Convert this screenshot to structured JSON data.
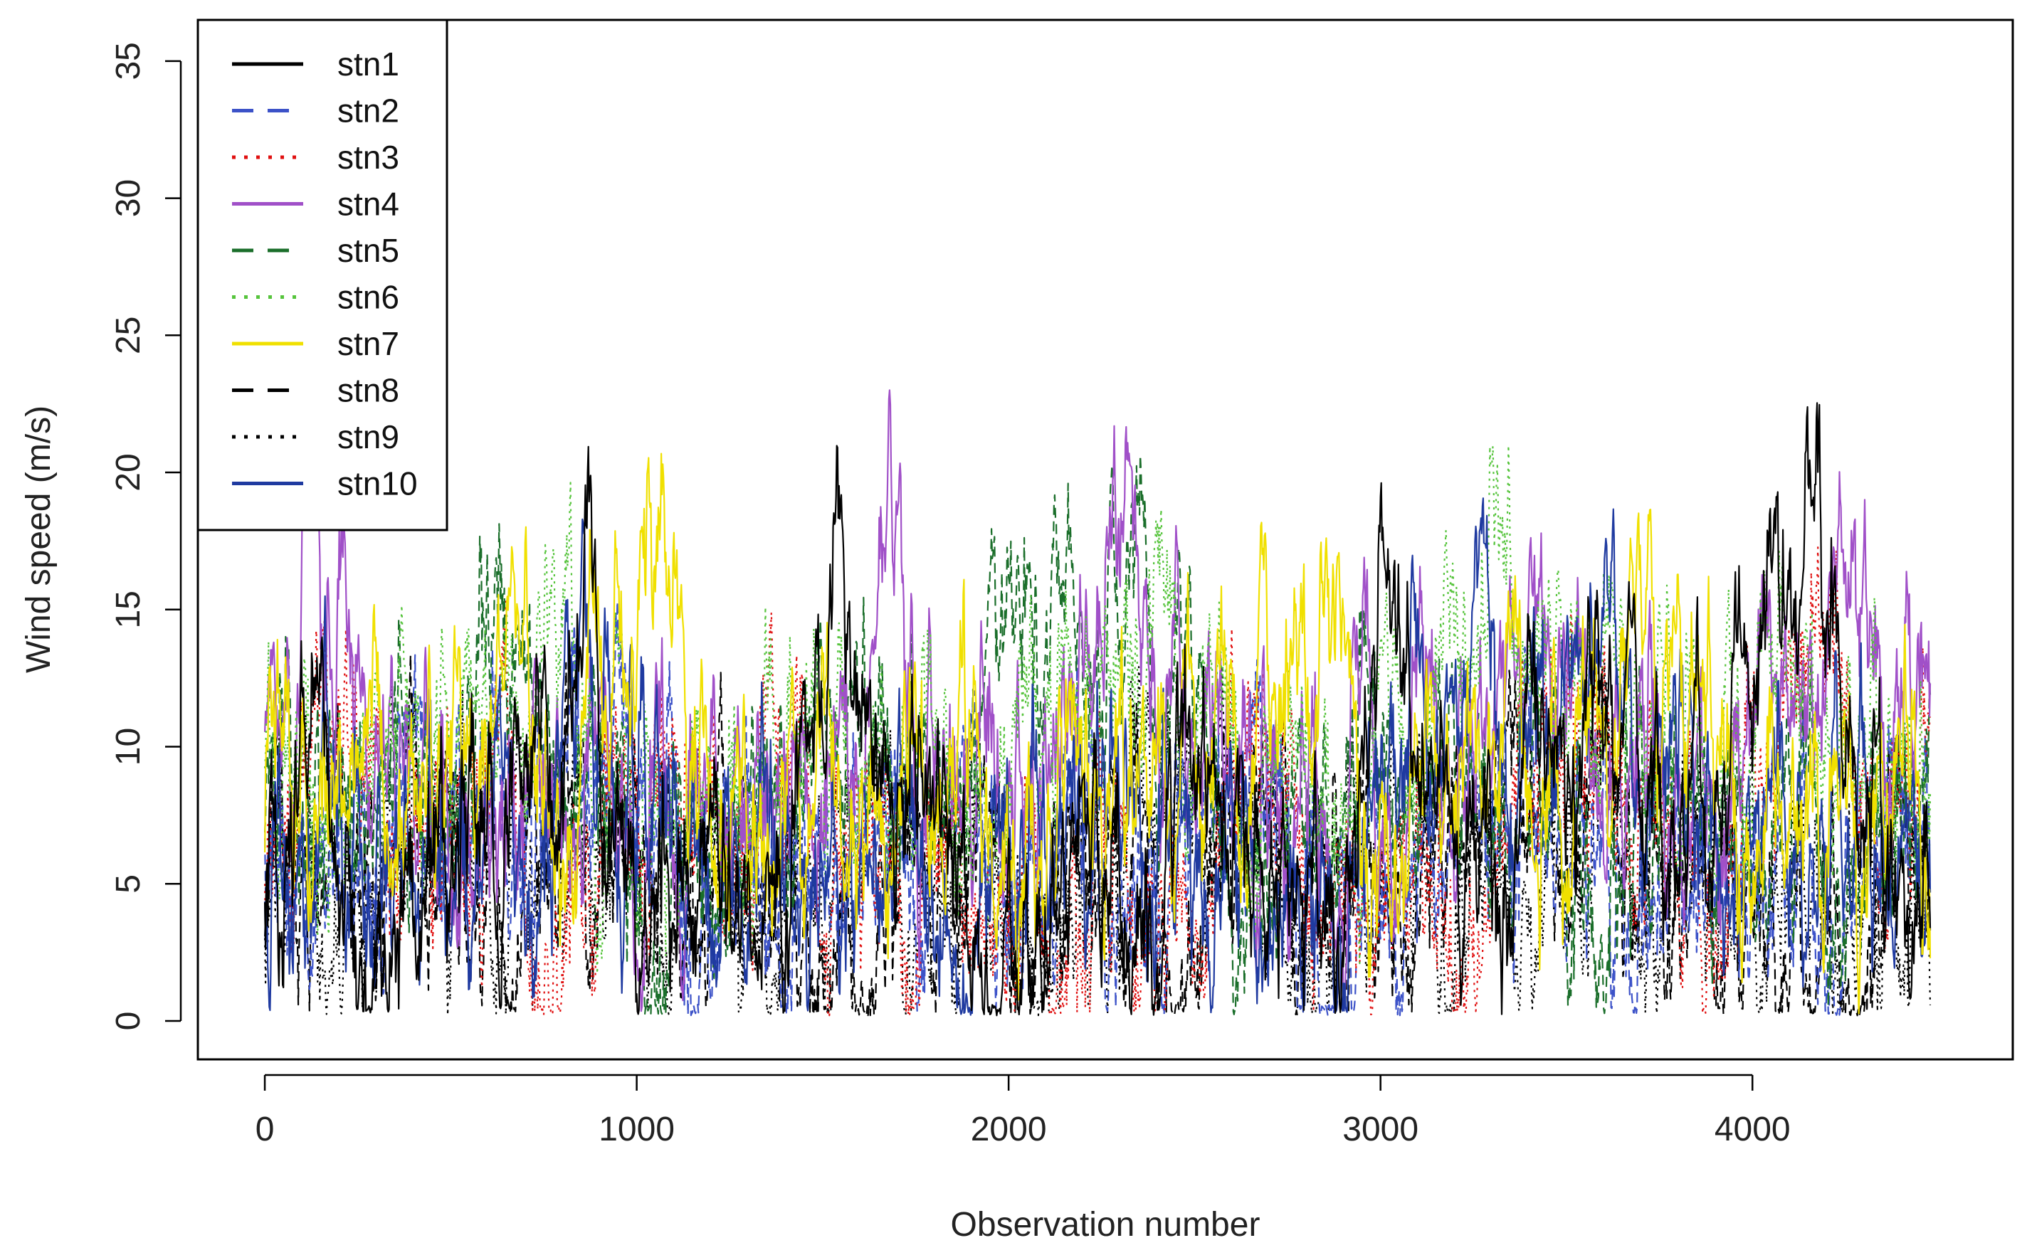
{
  "chart_data": {
    "type": "line",
    "title": "",
    "xlabel": "Observation number",
    "ylabel": "Wind speed (m/s)",
    "xlim": [
      -180,
      4700
    ],
    "ylim": [
      -1.4,
      36.5
    ],
    "x_ticks": [
      0,
      1000,
      2000,
      3000,
      4000
    ],
    "x_tick_labels": [
      "0",
      "1000",
      "2000",
      "3000",
      "4000"
    ],
    "y_ticks": [
      0,
      5,
      10,
      15,
      20,
      25,
      30,
      35
    ],
    "y_tick_labels": [
      "0",
      "5",
      "10",
      "15",
      "20",
      "25",
      "30",
      "35"
    ],
    "grid": false,
    "legend_position": "top-left",
    "n_observations": 4480,
    "series": [
      {
        "name": "stn1",
        "color": "#000000",
        "dash": "solid",
        "mean": 6.3,
        "anchors": [
          [
            0,
            5
          ],
          [
            150,
            9
          ],
          [
            300,
            2
          ],
          [
            500,
            4
          ],
          [
            700,
            9
          ],
          [
            850,
            15
          ],
          [
            1000,
            5
          ],
          [
            1200,
            6
          ],
          [
            1400,
            5
          ],
          [
            1550,
            17
          ],
          [
            1650,
            8
          ],
          [
            1800,
            5
          ],
          [
            2000,
            1
          ],
          [
            2200,
            7
          ],
          [
            2400,
            5
          ],
          [
            2500,
            10
          ],
          [
            2700,
            5
          ],
          [
            2900,
            3
          ],
          [
            3000,
            15
          ],
          [
            3200,
            6
          ],
          [
            3400,
            8
          ],
          [
            3600,
            11
          ],
          [
            3800,
            4
          ],
          [
            4000,
            12
          ],
          [
            4140,
            19.5
          ],
          [
            4300,
            6
          ],
          [
            4480,
            5
          ]
        ]
      },
      {
        "name": "stn2",
        "color": "#3c52c8",
        "dash": "dashed",
        "mean": 6.5,
        "anchors": [
          [
            0,
            6
          ],
          [
            200,
            4
          ],
          [
            400,
            7
          ],
          [
            600,
            5
          ],
          [
            800,
            8
          ],
          [
            1000,
            7
          ],
          [
            1200,
            4
          ],
          [
            1500,
            6
          ],
          [
            1800,
            5
          ],
          [
            2000,
            4
          ],
          [
            2300,
            6
          ],
          [
            2600,
            8
          ],
          [
            2900,
            3
          ],
          [
            3200,
            7
          ],
          [
            3500,
            5
          ],
          [
            3800,
            6
          ],
          [
            4100,
            5
          ],
          [
            4300,
            7
          ],
          [
            4480,
            6
          ]
        ]
      },
      {
        "name": "stn3",
        "color": "#e01010",
        "dash": "dotted",
        "mean": 6.7,
        "anchors": [
          [
            0,
            3
          ],
          [
            150,
            11
          ],
          [
            400,
            5
          ],
          [
            600,
            7
          ],
          [
            800,
            4
          ],
          [
            1000,
            9
          ],
          [
            1200,
            7
          ],
          [
            1400,
            5
          ],
          [
            1700,
            7
          ],
          [
            2000,
            3
          ],
          [
            2300,
            5
          ],
          [
            2600,
            7
          ],
          [
            2900,
            5
          ],
          [
            3300,
            7
          ],
          [
            3600,
            9
          ],
          [
            3900,
            6
          ],
          [
            4150,
            14
          ],
          [
            4350,
            8
          ],
          [
            4480,
            9
          ]
        ]
      },
      {
        "name": "stn4",
        "color": "#a050c8",
        "dash": "solid",
        "mean": 8.1,
        "anchors": [
          [
            0,
            12
          ],
          [
            100,
            14
          ],
          [
            200,
            16.5
          ],
          [
            300,
            10
          ],
          [
            450,
            7
          ],
          [
            700,
            8
          ],
          [
            1000,
            9
          ],
          [
            1300,
            7
          ],
          [
            1600,
            8
          ],
          [
            1680,
            20
          ],
          [
            1750,
            8
          ],
          [
            2000,
            6
          ],
          [
            2200,
            13
          ],
          [
            2400,
            13
          ],
          [
            2600,
            9
          ],
          [
            2900,
            7
          ],
          [
            3200,
            10
          ],
          [
            3350,
            16
          ],
          [
            3600,
            9
          ],
          [
            3900,
            7
          ],
          [
            4100,
            12
          ],
          [
            4200,
            16
          ],
          [
            4350,
            15
          ],
          [
            4480,
            11
          ]
        ]
      },
      {
        "name": "stn5",
        "color": "#1a6e2a",
        "dash": "dashed",
        "mean": 7.2,
        "anchors": [
          [
            0,
            7
          ],
          [
            200,
            8
          ],
          [
            400,
            9
          ],
          [
            700,
            14
          ],
          [
            900,
            6
          ],
          [
            1200,
            5
          ],
          [
            1500,
            9
          ],
          [
            1800,
            6
          ],
          [
            2000,
            13
          ],
          [
            2200,
            11
          ],
          [
            2320,
            16
          ],
          [
            2500,
            8
          ],
          [
            2700,
            7
          ],
          [
            2900,
            9
          ],
          [
            3100,
            6
          ],
          [
            3300,
            8
          ],
          [
            3600,
            7
          ],
          [
            3900,
            8
          ],
          [
            4100,
            9
          ],
          [
            4300,
            5
          ],
          [
            4480,
            7
          ]
        ]
      },
      {
        "name": "stn6",
        "color": "#56c43c",
        "dash": "dotted",
        "mean": 8.0,
        "anchors": [
          [
            0,
            8
          ],
          [
            200,
            7
          ],
          [
            400,
            13
          ],
          [
            600,
            8
          ],
          [
            800,
            11
          ],
          [
            1000,
            6
          ],
          [
            1300,
            9
          ],
          [
            1550,
            12
          ],
          [
            1700,
            12
          ],
          [
            1900,
            7
          ],
          [
            2200,
            13
          ],
          [
            2300,
            15
          ],
          [
            2500,
            12
          ],
          [
            2700,
            8
          ],
          [
            3000,
            9
          ],
          [
            3300,
            16
          ],
          [
            3500,
            13
          ],
          [
            3700,
            12
          ],
          [
            3900,
            8
          ],
          [
            4100,
            12
          ],
          [
            4300,
            9
          ],
          [
            4480,
            9
          ]
        ]
      },
      {
        "name": "stn7",
        "color": "#f0e000",
        "dash": "solid",
        "mean": 7.8,
        "anchors": [
          [
            0,
            6
          ],
          [
            200,
            8
          ],
          [
            400,
            9
          ],
          [
            600,
            10
          ],
          [
            680,
            16
          ],
          [
            800,
            9
          ],
          [
            1000,
            15
          ],
          [
            1100,
            16
          ],
          [
            1200,
            7
          ],
          [
            1400,
            9
          ],
          [
            1600,
            8
          ],
          [
            1800,
            10
          ],
          [
            2000,
            7
          ],
          [
            2200,
            8
          ],
          [
            2400,
            9
          ],
          [
            2600,
            10
          ],
          [
            2800,
            15
          ],
          [
            3000,
            7
          ],
          [
            3200,
            8
          ],
          [
            3300,
            10
          ],
          [
            3500,
            9
          ],
          [
            3700,
            12
          ],
          [
            3900,
            9
          ],
          [
            4100,
            8
          ],
          [
            4300,
            7
          ],
          [
            4480,
            6
          ]
        ]
      },
      {
        "name": "stn8",
        "color": "#000000",
        "dash": "dashed",
        "mean": 5.0,
        "anchors": [
          [
            0,
            4
          ],
          [
            300,
            5
          ],
          [
            600,
            4
          ],
          [
            900,
            6
          ],
          [
            1200,
            5
          ],
          [
            1500,
            4
          ],
          [
            1800,
            5
          ],
          [
            2100,
            6
          ],
          [
            2400,
            4
          ],
          [
            2700,
            5
          ],
          [
            3000,
            4
          ],
          [
            3300,
            5
          ],
          [
            3600,
            6
          ],
          [
            3900,
            5
          ],
          [
            4200,
            4
          ],
          [
            4480,
            5
          ]
        ]
      },
      {
        "name": "stn9",
        "color": "#000000",
        "dash": "dotted",
        "mean": 4.8,
        "anchors": [
          [
            0,
            5
          ],
          [
            300,
            4
          ],
          [
            600,
            6
          ],
          [
            900,
            5
          ],
          [
            1200,
            4
          ],
          [
            1500,
            6
          ],
          [
            1800,
            4
          ],
          [
            2100,
            5
          ],
          [
            2400,
            6
          ],
          [
            2700,
            4
          ],
          [
            3000,
            5
          ],
          [
            3300,
            4
          ],
          [
            3600,
            5
          ],
          [
            3900,
            6
          ],
          [
            4200,
            5
          ],
          [
            4480,
            4
          ]
        ]
      },
      {
        "name": "stn10",
        "color": "#1f3aa0",
        "dash": "solid",
        "mean": 6.0,
        "anchors": [
          [
            0,
            5
          ],
          [
            200,
            6
          ],
          [
            400,
            5
          ],
          [
            700,
            7
          ],
          [
            850,
            13
          ],
          [
            1000,
            6
          ],
          [
            1300,
            5
          ],
          [
            1600,
            6
          ],
          [
            1900,
            5
          ],
          [
            2200,
            7
          ],
          [
            2500,
            6
          ],
          [
            2800,
            5
          ],
          [
            3000,
            6
          ],
          [
            3200,
            14
          ],
          [
            3400,
            8
          ],
          [
            3750,
            13
          ],
          [
            3900,
            6
          ],
          [
            4200,
            7
          ],
          [
            4480,
            5
          ]
        ]
      }
    ]
  }
}
